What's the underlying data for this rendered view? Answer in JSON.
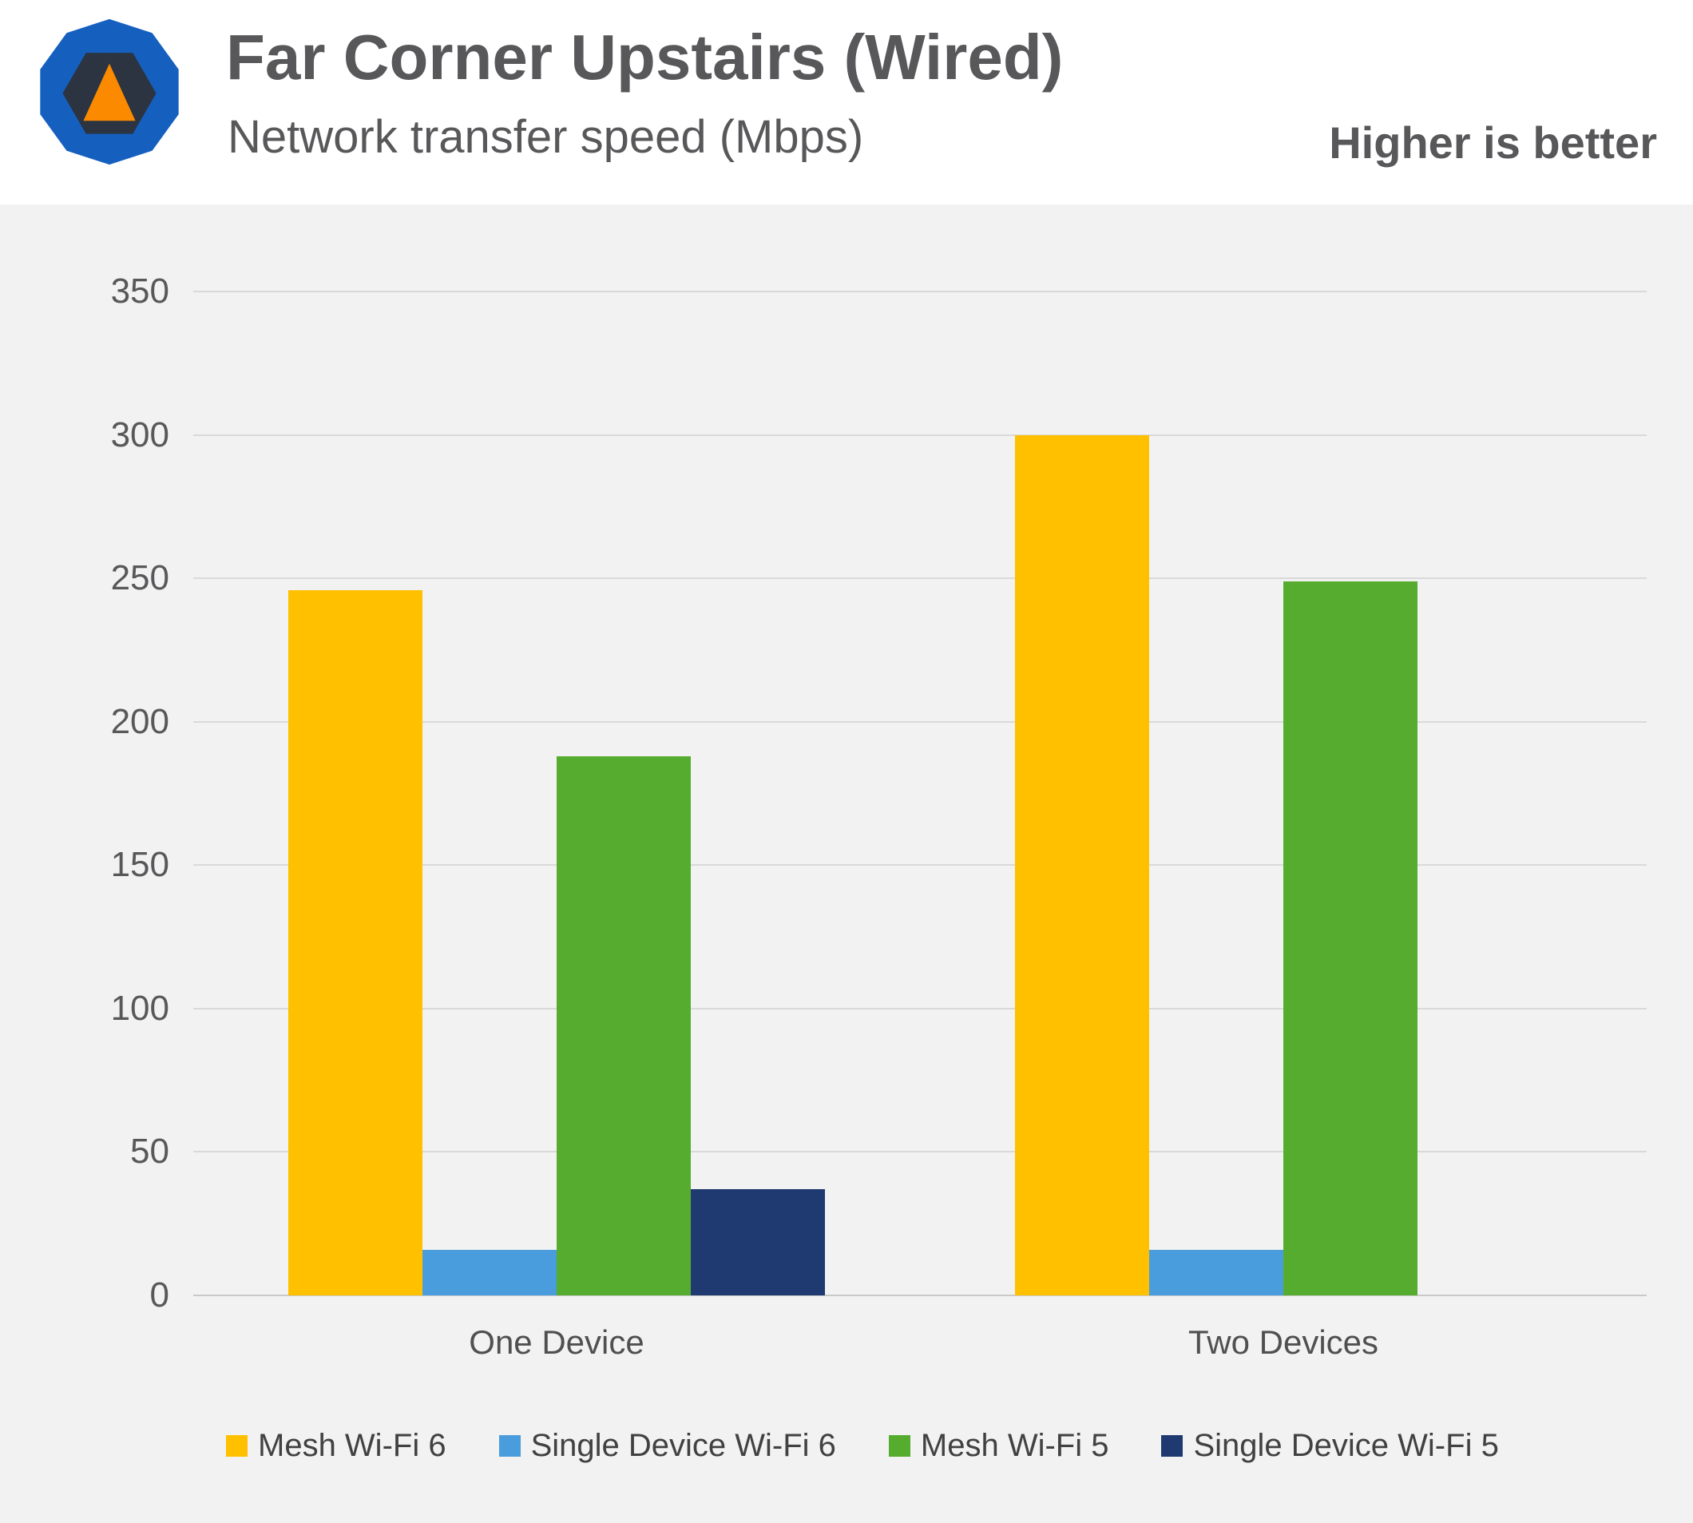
{
  "header": {
    "title": "Far Corner Upstairs (Wired)",
    "subtitle": "Network transfer speed (Mbps)",
    "note": "Higher is better",
    "logo": {
      "name": "techspot-logo",
      "outer_color": "#1560bf",
      "inner_color": "#2b3440",
      "triangle_color": "#fc8a00"
    }
  },
  "chart_data": {
    "type": "bar",
    "title": "Far Corner Upstairs (Wired)",
    "subtitle": "Network transfer speed (Mbps)",
    "annotation": "Higher is better",
    "categories": [
      "One Device",
      "Two Devices"
    ],
    "series": [
      {
        "name": "Mesh Wi-Fi 6",
        "color": "#ffc000",
        "values": [
          246,
          300
        ]
      },
      {
        "name": "Single Device Wi-Fi 6",
        "color": "#4a9ddc",
        "values": [
          16,
          16
        ]
      },
      {
        "name": "Mesh Wi-Fi 5",
        "color": "#56ac2e",
        "values": [
          188,
          249
        ]
      },
      {
        "name": "Single Device Wi-Fi 5",
        "color": "#1e3a70",
        "values": [
          37,
          0
        ]
      }
    ],
    "xlabel": "",
    "ylabel": "",
    "ylim": [
      0,
      350
    ],
    "yticks": [
      0,
      50,
      100,
      150,
      200,
      250,
      300,
      350
    ],
    "grid": true,
    "legend_position": "bottom",
    "background_color": "#f2f2f2",
    "gridline_color": "#d9d9d9"
  }
}
